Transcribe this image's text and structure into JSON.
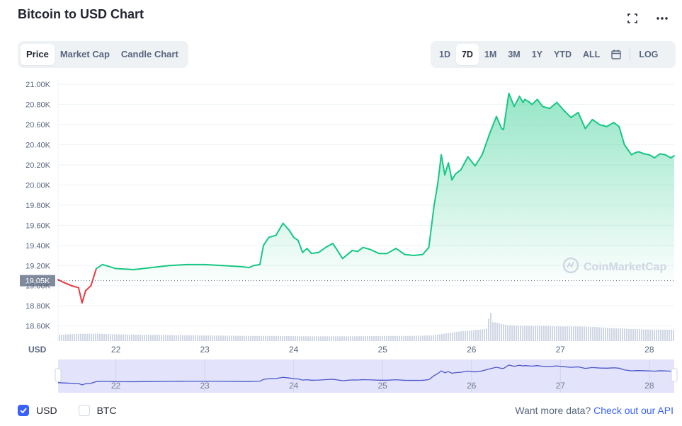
{
  "title": "Bitcoin to USD Chart",
  "top_icons": [
    "fullscreen-icon",
    "more-icon"
  ],
  "chart_tabs": [
    {
      "label": "Price",
      "active": true
    },
    {
      "label": "Market Cap",
      "active": false
    },
    {
      "label": "Candle Chart",
      "active": false
    }
  ],
  "range_tabs": [
    {
      "label": "1D",
      "active": false
    },
    {
      "label": "7D",
      "active": true
    },
    {
      "label": "1M",
      "active": false
    },
    {
      "label": "3M",
      "active": false
    },
    {
      "label": "1Y",
      "active": false
    },
    {
      "label": "YTD",
      "active": false
    },
    {
      "label": "ALL",
      "active": false
    }
  ],
  "log_label": "LOG",
  "watermark": "CoinMarketCap",
  "footer": {
    "options": [
      {
        "label": "USD",
        "checked": true
      },
      {
        "label": "BTC",
        "checked": false
      }
    ],
    "more_text": "Want more data?",
    "more_link": "Check out our API"
  },
  "chart_data": {
    "type": "area",
    "currency_label": "USD",
    "ylim": [
      18450,
      21050
    ],
    "y_ticks": [
      18600,
      18800,
      19000,
      19200,
      19400,
      19600,
      19800,
      20000,
      20200,
      20400,
      20600,
      20800,
      21000
    ],
    "y_tick_labels": [
      "18.60K",
      "18.80K",
      "19.00K",
      "19.20K",
      "19.40K",
      "19.60K",
      "19.80K",
      "20.00K",
      "20.20K",
      "20.40K",
      "20.60K",
      "20.80K",
      "21.00K"
    ],
    "xlim": [
      21.35,
      28.28
    ],
    "x_ticks": [
      22,
      23,
      24,
      25,
      26,
      27,
      28
    ],
    "x_tick_labels": [
      "22",
      "23",
      "24",
      "25",
      "26",
      "27",
      "28"
    ],
    "reference_price": 19050,
    "reference_label": "19.05K",
    "colors": {
      "up": "#16c784",
      "down": "#ea3943",
      "area_top": "#16c784",
      "volume": "#cfd6e4",
      "nav_fill": "#e3e4fb",
      "nav_line": "#4b55c9",
      "grid": "#eff2f5",
      "axis_text": "#58667e",
      "ref_label_bg": "#808a9d"
    },
    "series": [
      {
        "x": [
          21.35,
          21.42,
          21.5,
          21.58,
          21.62,
          21.66,
          21.72,
          21.78,
          21.85,
          22.0,
          22.2,
          22.4,
          22.6,
          22.8,
          23.0,
          23.2,
          23.4,
          23.5,
          23.55,
          23.62,
          23.66,
          23.72,
          23.8,
          23.88,
          23.95,
          24.0,
          24.05,
          24.1,
          24.15,
          24.2,
          24.28,
          24.36,
          24.44,
          24.55,
          24.66,
          24.72,
          24.78,
          24.86,
          24.96,
          25.05,
          25.15,
          25.25,
          25.35,
          25.45,
          25.52,
          25.58,
          25.62,
          25.66,
          25.7,
          25.74,
          25.78,
          25.82,
          25.88,
          25.96,
          26.04,
          26.12,
          26.2,
          26.28,
          26.34,
          26.36,
          26.42,
          26.48,
          26.54,
          26.58,
          26.6,
          26.64,
          26.68,
          26.74,
          26.8,
          26.88,
          26.96,
          27.04,
          27.12,
          27.2,
          27.28,
          27.36,
          27.44,
          27.52,
          27.6,
          27.66,
          27.72,
          27.8,
          27.84,
          27.88,
          27.94,
          28.0,
          28.06,
          28.12,
          28.18,
          28.24,
          28.28
        ],
        "y": [
          19060,
          19030,
          19000,
          18980,
          18830,
          18950,
          19000,
          19170,
          19210,
          19170,
          19160,
          19180,
          19200,
          19210,
          19210,
          19200,
          19190,
          19180,
          19200,
          19210,
          19400,
          19480,
          19500,
          19620,
          19550,
          19480,
          19450,
          19330,
          19370,
          19320,
          19330,
          19380,
          19420,
          19270,
          19350,
          19340,
          19380,
          19360,
          19320,
          19320,
          19370,
          19310,
          19300,
          19310,
          19380,
          19800,
          20010,
          20300,
          20100,
          20220,
          20050,
          20110,
          20150,
          20280,
          20190,
          20300,
          20500,
          20680,
          20560,
          20550,
          20910,
          20780,
          20880,
          20820,
          20850,
          20830,
          20800,
          20850,
          20780,
          20760,
          20820,
          20740,
          20670,
          20720,
          20560,
          20650,
          20600,
          20580,
          20620,
          20580,
          20400,
          20300,
          20320,
          20330,
          20310,
          20300,
          20270,
          20310,
          20300,
          20270,
          20290
        ]
      }
    ],
    "volume": {
      "x": [
        21.35,
        21.6,
        21.8,
        22.0,
        22.3,
        22.6,
        22.9,
        23.2,
        23.5,
        23.8,
        24.1,
        24.4,
        24.7,
        25.0,
        25.3,
        25.55,
        25.7,
        25.85,
        26.0,
        26.1,
        26.17,
        26.2,
        26.23,
        26.3,
        26.4,
        26.6,
        26.8,
        27.0,
        27.2,
        27.4,
        27.6,
        27.8,
        28.0,
        28.28
      ],
      "values": [
        1.0,
        1.15,
        1.15,
        1.05,
        1.0,
        0.95,
        0.9,
        0.85,
        0.8,
        0.8,
        0.75,
        0.75,
        0.75,
        0.8,
        0.8,
        0.9,
        1.2,
        1.5,
        1.7,
        1.8,
        2.0,
        5.0,
        3.0,
        2.8,
        2.5,
        2.4,
        2.4,
        2.3,
        2.3,
        2.2,
        2.0,
        1.9,
        1.8,
        1.8
      ]
    }
  }
}
